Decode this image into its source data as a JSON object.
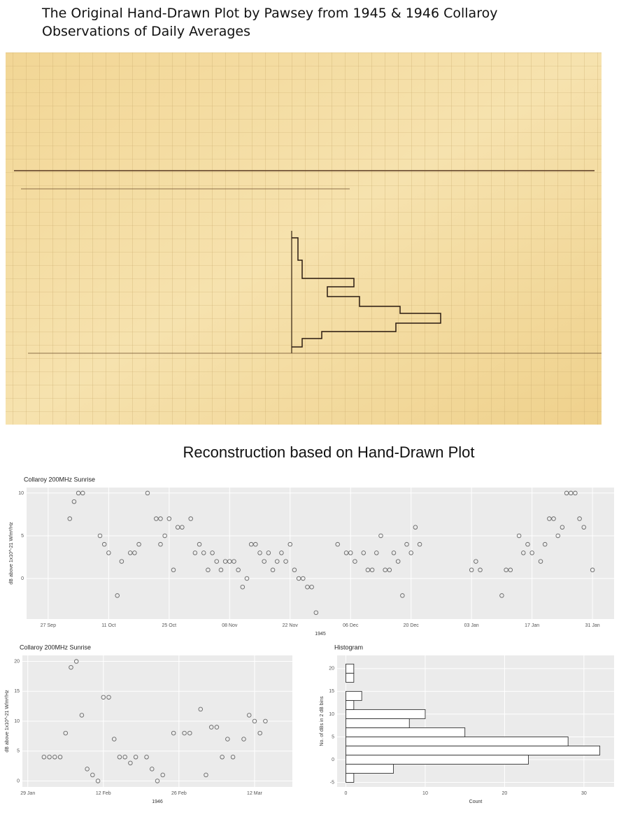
{
  "title": "The Original Hand-Drawn Plot by Pawsey from 1945 & 1946 Collaroy Observations of Daily Averages",
  "subtitle": "Reconstruction based on Hand-Drawn Plot",
  "chart_data": [
    {
      "type": "scatter",
      "title": "Collaroy 200MHz Sunrise",
      "xlabel": "1945",
      "ylabel": "dB above 1x10^-21 W/m²/Hz",
      "x": [
        "02 Oct",
        "03 Oct",
        "04 Oct",
        "05 Oct",
        "09 Oct",
        "10 Oct",
        "11 Oct",
        "13 Oct",
        "14 Oct",
        "16 Oct",
        "17 Oct",
        "18 Oct",
        "20 Oct",
        "22 Oct",
        "23 Oct",
        "23 Oct",
        "24 Oct",
        "25 Oct",
        "26 Oct",
        "27 Oct",
        "28 Oct",
        "30 Oct",
        "31 Oct",
        "01 Nov",
        "02 Nov",
        "03 Nov",
        "04 Nov",
        "05 Nov",
        "06 Nov",
        "07 Nov",
        "08 Nov",
        "09 Nov",
        "10 Nov",
        "11 Nov",
        "12 Nov",
        "13 Nov",
        "14 Nov",
        "15 Nov",
        "16 Nov",
        "17 Nov",
        "18 Nov",
        "19 Nov",
        "20 Nov",
        "21 Nov",
        "22 Nov",
        "23 Nov",
        "24 Nov",
        "25 Nov",
        "26 Nov",
        "27 Nov",
        "28 Nov",
        "03 Dec",
        "05 Dec",
        "06 Dec",
        "07 Dec",
        "09 Dec",
        "10 Dec",
        "11 Dec",
        "12 Dec",
        "13 Dec",
        "14 Dec",
        "15 Dec",
        "16 Dec",
        "17 Dec",
        "18 Dec",
        "19 Dec",
        "20 Dec",
        "21 Dec",
        "22 Dec",
        "03 Jan",
        "04 Jan",
        "05 Jan",
        "10 Jan",
        "11 Jan",
        "12 Jan",
        "14 Jan",
        "15 Jan",
        "16 Jan",
        "17 Jan",
        "19 Jan",
        "20 Jan",
        "21 Jan",
        "22 Jan",
        "23 Jan",
        "24 Jan",
        "25 Jan",
        "26 Jan",
        "27 Jan",
        "28 Jan",
        "29 Jan",
        "31 Jan"
      ],
      "values": [
        7,
        9,
        10,
        10,
        5,
        4,
        3,
        -2,
        2,
        3,
        3,
        4,
        10,
        7,
        7,
        4,
        5,
        7,
        1,
        6,
        6,
        7,
        3,
        4,
        3,
        1,
        3,
        2,
        1,
        2,
        2,
        2,
        1,
        -1,
        0,
        4,
        4,
        3,
        2,
        3,
        1,
        2,
        3,
        2,
        4,
        1,
        0,
        0,
        -1,
        -1,
        -4,
        4,
        3,
        3,
        2,
        3,
        1,
        1,
        3,
        5,
        1,
        1,
        3,
        2,
        -2,
        4,
        3,
        6,
        4,
        1,
        2,
        1,
        -2,
        1,
        1,
        5,
        3,
        4,
        3,
        2,
        4,
        7,
        7,
        5,
        6,
        10,
        10,
        10,
        7,
        6,
        1
      ],
      "xlim": [
        "22 Sep",
        "05 Feb"
      ],
      "ylim": [
        -4.75,
        10.65
      ],
      "xticks": [
        "27 Sep",
        "11 Oct",
        "25 Oct",
        "08 Nov",
        "22 Nov",
        "06 Dec",
        "20 Dec",
        "03 Jan",
        "17 Jan",
        "31 Jan"
      ],
      "yticks": [
        0,
        5,
        10
      ],
      "grid": true,
      "color": "#666666"
    },
    {
      "type": "scatter",
      "title": "Collaroy 200MHz Sunrise",
      "xlabel": "1946",
      "ylabel": "dB above 1x10^-21 W/m²/Hz",
      "x": [
        "01 Feb",
        "02 Feb",
        "03 Feb",
        "04 Feb",
        "05 Feb",
        "06 Feb",
        "07 Feb",
        "08 Feb",
        "09 Feb",
        "10 Feb",
        "11 Feb",
        "12 Feb",
        "13 Feb",
        "14 Feb",
        "15 Feb",
        "16 Feb",
        "17 Feb",
        "18 Feb",
        "20 Feb",
        "21 Feb",
        "22 Feb",
        "23 Feb",
        "25 Feb",
        "27 Feb",
        "28 Feb",
        "02 Mar",
        "03 Mar",
        "04 Mar",
        "05 Mar",
        "06 Mar",
        "07 Mar",
        "08 Mar",
        "10 Mar",
        "11 Mar",
        "12 Mar",
        "13 Mar",
        "14 Mar"
      ],
      "values": [
        4,
        4,
        4,
        4,
        8,
        19,
        20,
        11,
        2,
        1,
        0,
        14,
        14,
        7,
        4,
        4,
        3,
        4,
        4,
        2,
        0,
        1,
        8,
        8,
        8,
        12,
        1,
        9,
        9,
        4,
        7,
        4,
        7,
        11,
        10,
        8,
        10
      ],
      "xlim": [
        "28 Jan",
        "19 Mar"
      ],
      "ylim": [
        -1,
        21
      ],
      "xticks": [
        "29 Jan",
        "12 Feb",
        "26 Feb",
        "12 Mar"
      ],
      "yticks": [
        0,
        5,
        10,
        15,
        20
      ],
      "grid": true,
      "color": "#666666"
    },
    {
      "type": "histogram",
      "orientation": "horizontal",
      "title": "Histogram",
      "xlabel": "Count",
      "ylabel": "No. of dBs in 2 dB bins",
      "bins": [
        -5,
        -3,
        -1,
        1,
        3,
        5,
        7,
        9,
        11,
        13,
        15,
        17,
        19,
        21
      ],
      "counts": [
        1,
        6,
        23,
        32,
        28,
        15,
        8,
        10,
        1,
        2,
        0,
        1,
        1
      ],
      "xlim": [
        -1.1,
        33.8
      ],
      "ylim": [
        -6,
        22.9
      ],
      "xticks": [
        0,
        10,
        20,
        30
      ],
      "yticks": [
        -5,
        0,
        5,
        10,
        15,
        20
      ],
      "grid": true,
      "color": "#ffffff"
    }
  ]
}
